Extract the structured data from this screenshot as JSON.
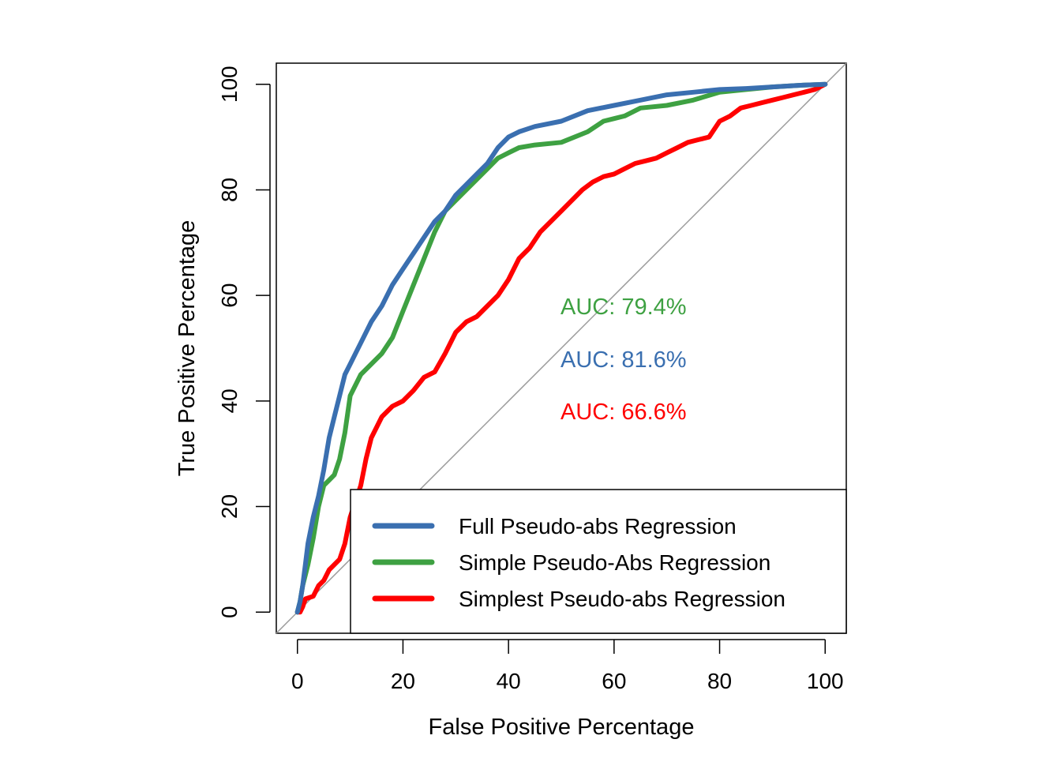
{
  "chart_data": {
    "type": "line",
    "xlabel": "False Positive Percentage",
    "ylabel": "True Positive Percentage",
    "xlim": [
      -4,
      104
    ],
    "ylim": [
      -4,
      104
    ],
    "xticks": [
      "0",
      "20",
      "40",
      "60",
      "80",
      "100"
    ],
    "yticks": [
      "0",
      "20",
      "40",
      "60",
      "80",
      "100"
    ],
    "diagonal_reference": true,
    "legend_position": "bottom-right",
    "series": [
      {
        "name": "Full Pseudo-abs Regression",
        "color": "#3a6fb0",
        "x": [
          0,
          0.5,
          1,
          1.5,
          2,
          3,
          4,
          5,
          6,
          7,
          8,
          9,
          10,
          11,
          12,
          14,
          16,
          18,
          20,
          22,
          24,
          26,
          28,
          30,
          32,
          34,
          36,
          38,
          40,
          42,
          45,
          50,
          55,
          60,
          65,
          70,
          75,
          80,
          85,
          90,
          95,
          100
        ],
        "y": [
          0,
          2,
          5,
          9,
          13,
          18,
          22,
          27,
          33,
          37,
          41,
          45,
          47,
          49,
          51,
          55,
          58,
          62,
          65,
          68,
          71,
          74,
          76,
          79,
          81,
          83,
          85,
          88,
          90,
          91,
          92,
          93,
          95,
          96,
          97,
          98,
          98.5,
          99,
          99.2,
          99.5,
          99.8,
          100
        ]
      },
      {
        "name": "Simple Pseudo-Abs Regression",
        "color": "#3ea142",
        "x": [
          0,
          0.5,
          1,
          2,
          3,
          4,
          5,
          6,
          7,
          8,
          9,
          10,
          12,
          14,
          16,
          18,
          20,
          22,
          24,
          26,
          28,
          30,
          32,
          34,
          36,
          38,
          40,
          42,
          45,
          50,
          55,
          58,
          60,
          62,
          65,
          70,
          75,
          80,
          85,
          90,
          95,
          100
        ],
        "y": [
          0,
          2,
          5,
          9,
          14,
          20,
          24,
          25,
          26,
          29,
          34,
          41,
          45,
          47,
          49,
          52,
          57,
          62,
          67,
          72,
          76,
          78,
          80,
          82,
          84,
          86,
          87,
          88,
          88.5,
          89,
          91,
          93,
          93.5,
          94,
          95.5,
          96,
          97,
          98.5,
          99,
          99.5,
          99.8,
          100
        ]
      },
      {
        "name": "Simplest Pseudo-abs Regression",
        "color": "#ff0000",
        "x": [
          0,
          0.5,
          1,
          1.5,
          3,
          4,
          5,
          6,
          8,
          9,
          10,
          11,
          12,
          13,
          14,
          16,
          18,
          20,
          22,
          24,
          26,
          28,
          30,
          32,
          34,
          36,
          38,
          40,
          42,
          44,
          46,
          48,
          50,
          52,
          54,
          56,
          58,
          60,
          62,
          64,
          66,
          68,
          70,
          72,
          74,
          76,
          78,
          80,
          82,
          84,
          86,
          88,
          90,
          92,
          94,
          96,
          98,
          100
        ],
        "y": [
          0,
          0,
          1,
          2.5,
          3,
          5,
          6,
          8,
          10,
          13,
          18,
          21,
          24,
          29,
          33,
          37,
          39,
          40,
          42,
          44.5,
          45.5,
          49,
          53,
          55,
          56,
          58,
          60,
          63,
          67,
          69,
          72,
          74,
          76,
          78,
          80,
          81.5,
          82.5,
          83,
          84,
          85,
          85.5,
          86,
          87,
          88,
          89,
          89.5,
          90,
          93,
          94,
          95.5,
          96,
          96.5,
          97,
          97.5,
          98,
          98.5,
          99,
          100
        ]
      }
    ],
    "annotations": [
      {
        "text": "AUC: 79.4%",
        "color": "#3ea142"
      },
      {
        "text": "AUC: 81.6%",
        "color": "#3a6fb0"
      },
      {
        "text": "AUC: 66.6%",
        "color": "#ff0000"
      }
    ]
  }
}
